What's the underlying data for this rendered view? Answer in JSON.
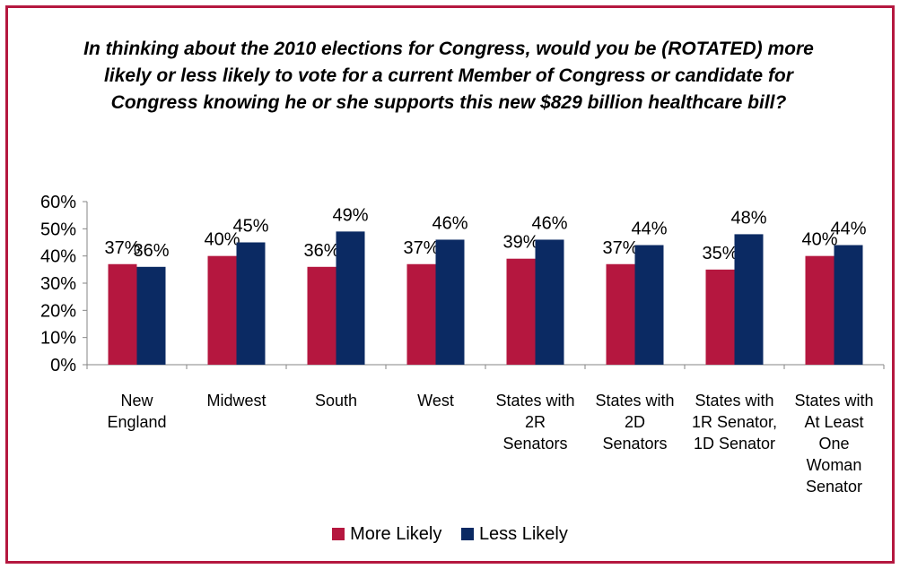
{
  "chart_data": {
    "type": "bar",
    "title": "In thinking about the 2010 elections for Congress, would you be (ROTATED) more likely or less likely to vote for a current Member of Congress or candidate for Congress knowing he or she supports this new $829 billion healthcare bill?",
    "categories": [
      [
        "New",
        "England"
      ],
      [
        "Midwest"
      ],
      [
        "South"
      ],
      [
        "West"
      ],
      [
        "States with",
        "2R",
        "Senators"
      ],
      [
        "States with",
        "2D",
        "Senators"
      ],
      [
        "States with",
        "1R Senator,",
        "1D Senator"
      ],
      [
        "States with",
        "At Least",
        "One",
        "Woman",
        "Senator"
      ]
    ],
    "series": [
      {
        "name": "More Likely",
        "color": "#b5173f",
        "values": [
          37,
          40,
          36,
          37,
          39,
          37,
          35,
          40
        ],
        "labels": [
          "37%",
          "40%",
          "36%",
          "37%",
          "39%",
          "37%",
          "35%",
          "40%"
        ]
      },
      {
        "name": "Less Likely",
        "color": "#0b2a63",
        "values": [
          36,
          45,
          49,
          46,
          46,
          44,
          48,
          44
        ],
        "labels": [
          "36%",
          "45%",
          "49%",
          "46%",
          "46%",
          "44%",
          "48%",
          "44%"
        ]
      }
    ],
    "y_ticks": [
      "0%",
      "10%",
      "20%",
      "30%",
      "40%",
      "50%",
      "60%"
    ],
    "ylim": [
      0,
      60
    ],
    "grid": false,
    "legend_position": "bottom"
  },
  "legend": {
    "more_label": "More Likely",
    "less_label": "Less Likely"
  }
}
